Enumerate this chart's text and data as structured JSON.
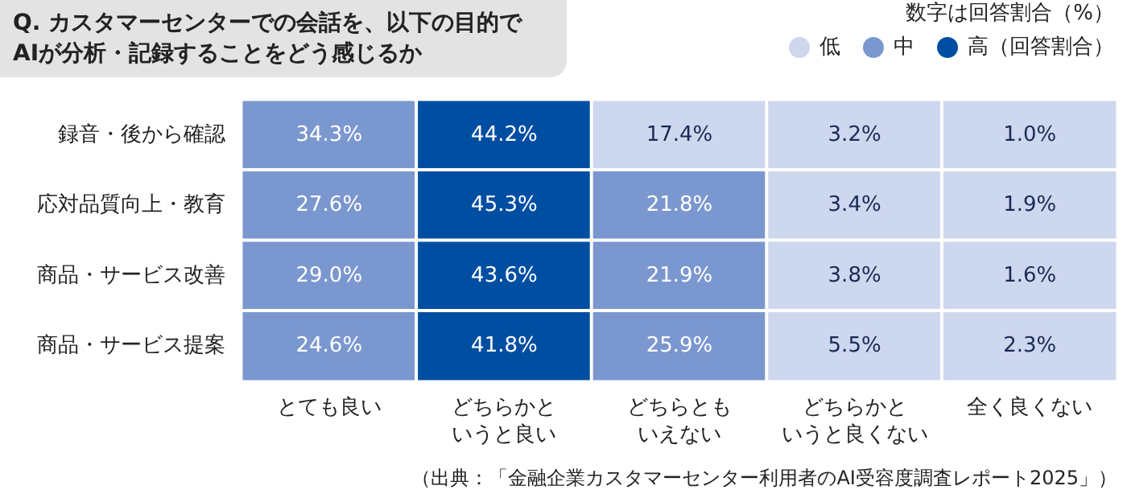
{
  "chart_data": {
    "type": "heatmap",
    "title": "Q. カスタマーセンターでの会話を、以下の目的で\nAIが分析・記録することをどう感じるか",
    "categories": [
      "とても良い",
      "どちらかというと良い",
      "どちらともいえない",
      "どちらかというと良くない",
      "全く良くない"
    ],
    "y_categories": [
      "録音・後から確認",
      "応対品質向上・教育",
      "商品・サービス改善",
      "商品・サービス提案"
    ],
    "cells": [
      [
        34.3,
        44.2,
        17.4,
        3.2,
        1.0
      ],
      [
        27.6,
        45.3,
        21.8,
        3.4,
        1.9
      ],
      [
        29.0,
        43.6,
        21.9,
        3.8,
        1.6
      ],
      [
        24.6,
        41.8,
        25.9,
        5.5,
        2.3
      ]
    ],
    "cell_labels": [
      [
        "34.3%",
        "44.2%",
        "17.4%",
        "3.2%",
        "1.0%"
      ],
      [
        "27.6%",
        "45.3%",
        "21.8%",
        "3.4%",
        "1.9%"
      ],
      [
        "29.0%",
        "43.6%",
        "21.9%",
        "3.8%",
        "1.6%"
      ],
      [
        "24.6%",
        "41.8%",
        "25.9%",
        "5.5%",
        "2.3%"
      ]
    ],
    "colors": [
      [
        "#7b97cf",
        "#004ea2",
        "#cdd7ee",
        "#cdd7ee",
        "#cdd7ee"
      ],
      [
        "#7b97cf",
        "#004ea2",
        "#7b97cf",
        "#cdd7ee",
        "#cdd7ee"
      ],
      [
        "#7b97cf",
        "#004ea2",
        "#7b97cf",
        "#cdd7ee",
        "#cdd7ee"
      ],
      [
        "#7b97cf",
        "#004ea2",
        "#7b97cf",
        "#cdd7ee",
        "#cdd7ee"
      ]
    ],
    "annotations": [
      "数字は回答割合（%）",
      "低",
      "中",
      "高（回答割合）",
      "（出典：「金融企業カスタマーセンター利用者のAI受容度調査レポート2025」）"
    ]
  }
}
